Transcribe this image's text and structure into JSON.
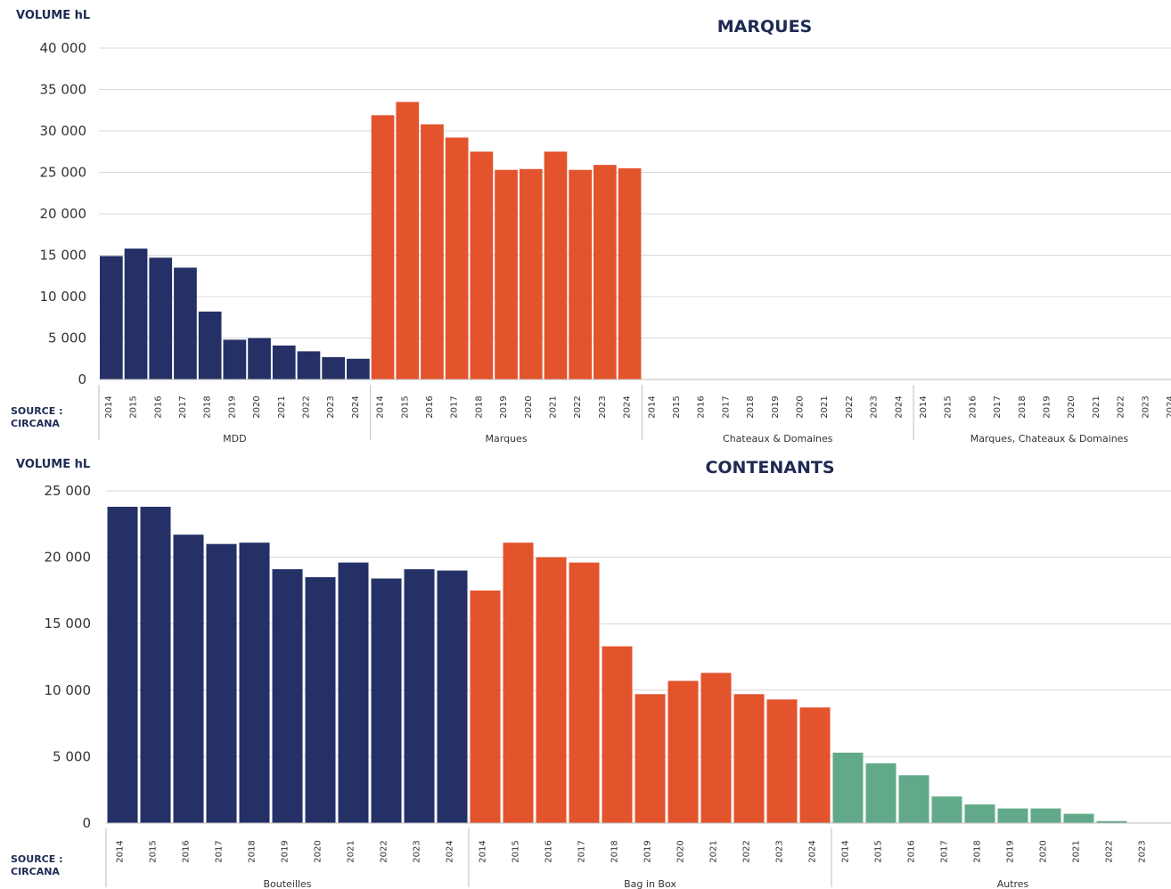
{
  "chart_data": [
    {
      "type": "bar",
      "title": "MARQUES",
      "ylabel": "VOLUME hL",
      "source": [
        "SOURCE :",
        "CIRCANA"
      ],
      "ylim": [
        0,
        40000
      ],
      "yticks": [
        0,
        5000,
        10000,
        15000,
        20000,
        25000,
        30000,
        35000,
        40000
      ],
      "ytick_labels": [
        "0",
        "5 000",
        "10 000",
        "15 000",
        "20 000",
        "25 000",
        "30 000",
        "35 000",
        "40 000"
      ],
      "grid": true,
      "years": [
        "2014",
        "2015",
        "2016",
        "2017",
        "2018",
        "2019",
        "2020",
        "2021",
        "2022",
        "2023",
        "2024"
      ],
      "groups": [
        {
          "name": "MDD",
          "color": "#253066",
          "values": [
            14900,
            15800,
            14700,
            13500,
            8200,
            4800,
            5000,
            4100,
            3400,
            2700,
            2500
          ]
        },
        {
          "name": "Marques",
          "color": "#e3532c",
          "values": [
            31900,
            33500,
            30800,
            29200,
            27500,
            25300,
            25400,
            27500,
            25300,
            25900,
            25500
          ]
        },
        {
          "name": "Chateaux & Domaines",
          "color": "#e3532c",
          "values": [
            0,
            0,
            0,
            0,
            0,
            0,
            0,
            0,
            0,
            0,
            0
          ]
        },
        {
          "name": "Marques, Chateaux & Domaines",
          "color": "#e3532c",
          "values": [
            0,
            0,
            0,
            0,
            0,
            0,
            0,
            0,
            0,
            0,
            0
          ]
        }
      ]
    },
    {
      "type": "bar",
      "title": "CONTENANTS",
      "ylabel": "VOLUME hL",
      "source": [
        "SOURCE :",
        "CIRCANA"
      ],
      "ylim": [
        0,
        25000
      ],
      "yticks": [
        0,
        5000,
        10000,
        15000,
        20000,
        25000
      ],
      "ytick_labels": [
        "0",
        "5 000",
        "10 000",
        "15 000",
        "20 000",
        "25 000"
      ],
      "grid": true,
      "years": [
        "2014",
        "2015",
        "2016",
        "2017",
        "2018",
        "2019",
        "2020",
        "2021",
        "2022",
        "2023",
        "2024"
      ],
      "groups": [
        {
          "name": "Bouteilles",
          "color": "#253066",
          "values": [
            23800,
            23800,
            21700,
            21000,
            21100,
            19100,
            18500,
            19600,
            18400,
            19100,
            19000
          ]
        },
        {
          "name": "Bag in Box",
          "color": "#e3532c",
          "values": [
            17500,
            21100,
            20000,
            19600,
            13300,
            9700,
            10700,
            11300,
            9700,
            9300,
            8700
          ]
        },
        {
          "name": "Autres",
          "color": "#62a98a",
          "values": [
            5300,
            4500,
            3600,
            2000,
            1400,
            1100,
            1100,
            700,
            150,
            0,
            0
          ]
        }
      ]
    }
  ]
}
